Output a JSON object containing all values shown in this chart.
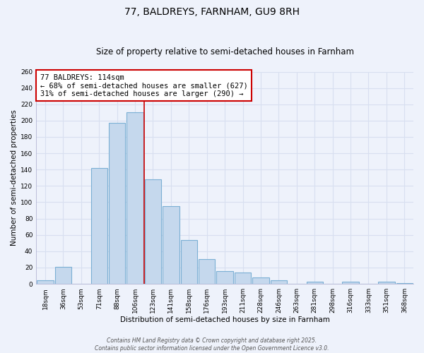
{
  "title": "77, BALDREYS, FARNHAM, GU9 8RH",
  "subtitle": "Size of property relative to semi-detached houses in Farnham",
  "xlabel": "Distribution of semi-detached houses by size in Farnham",
  "ylabel": "Number of semi-detached properties",
  "bar_labels": [
    "18sqm",
    "36sqm",
    "53sqm",
    "71sqm",
    "88sqm",
    "106sqm",
    "123sqm",
    "141sqm",
    "158sqm",
    "176sqm",
    "193sqm",
    "211sqm",
    "228sqm",
    "246sqm",
    "263sqm",
    "281sqm",
    "298sqm",
    "316sqm",
    "333sqm",
    "351sqm",
    "368sqm"
  ],
  "bar_values": [
    4,
    21,
    0,
    142,
    197,
    210,
    128,
    95,
    54,
    30,
    16,
    14,
    8,
    4,
    0,
    3,
    0,
    3,
    0,
    3,
    1
  ],
  "bar_color": "#c5d8ed",
  "bar_edge_color": "#7bafd4",
  "background_color": "#eef2fb",
  "grid_color": "#d8dff0",
  "vline_x": 5.5,
  "vline_color": "#cc0000",
  "annotation_title": "77 BALDREYS: 114sqm",
  "annotation_line1": "← 68% of semi-detached houses are smaller (627)",
  "annotation_line2": "31% of semi-detached houses are larger (290) →",
  "annotation_box_edge": "#cc0000",
  "ylim": [
    0,
    260
  ],
  "yticks": [
    0,
    20,
    40,
    60,
    80,
    100,
    120,
    140,
    160,
    180,
    200,
    220,
    240,
    260
  ],
  "footer_line1": "Contains HM Land Registry data © Crown copyright and database right 2025.",
  "footer_line2": "Contains public sector information licensed under the Open Government Licence v3.0.",
  "title_fontsize": 10,
  "subtitle_fontsize": 8.5,
  "axis_label_fontsize": 7.5,
  "tick_fontsize": 6.5,
  "annotation_fontsize": 7.5,
  "footer_fontsize": 5.5
}
